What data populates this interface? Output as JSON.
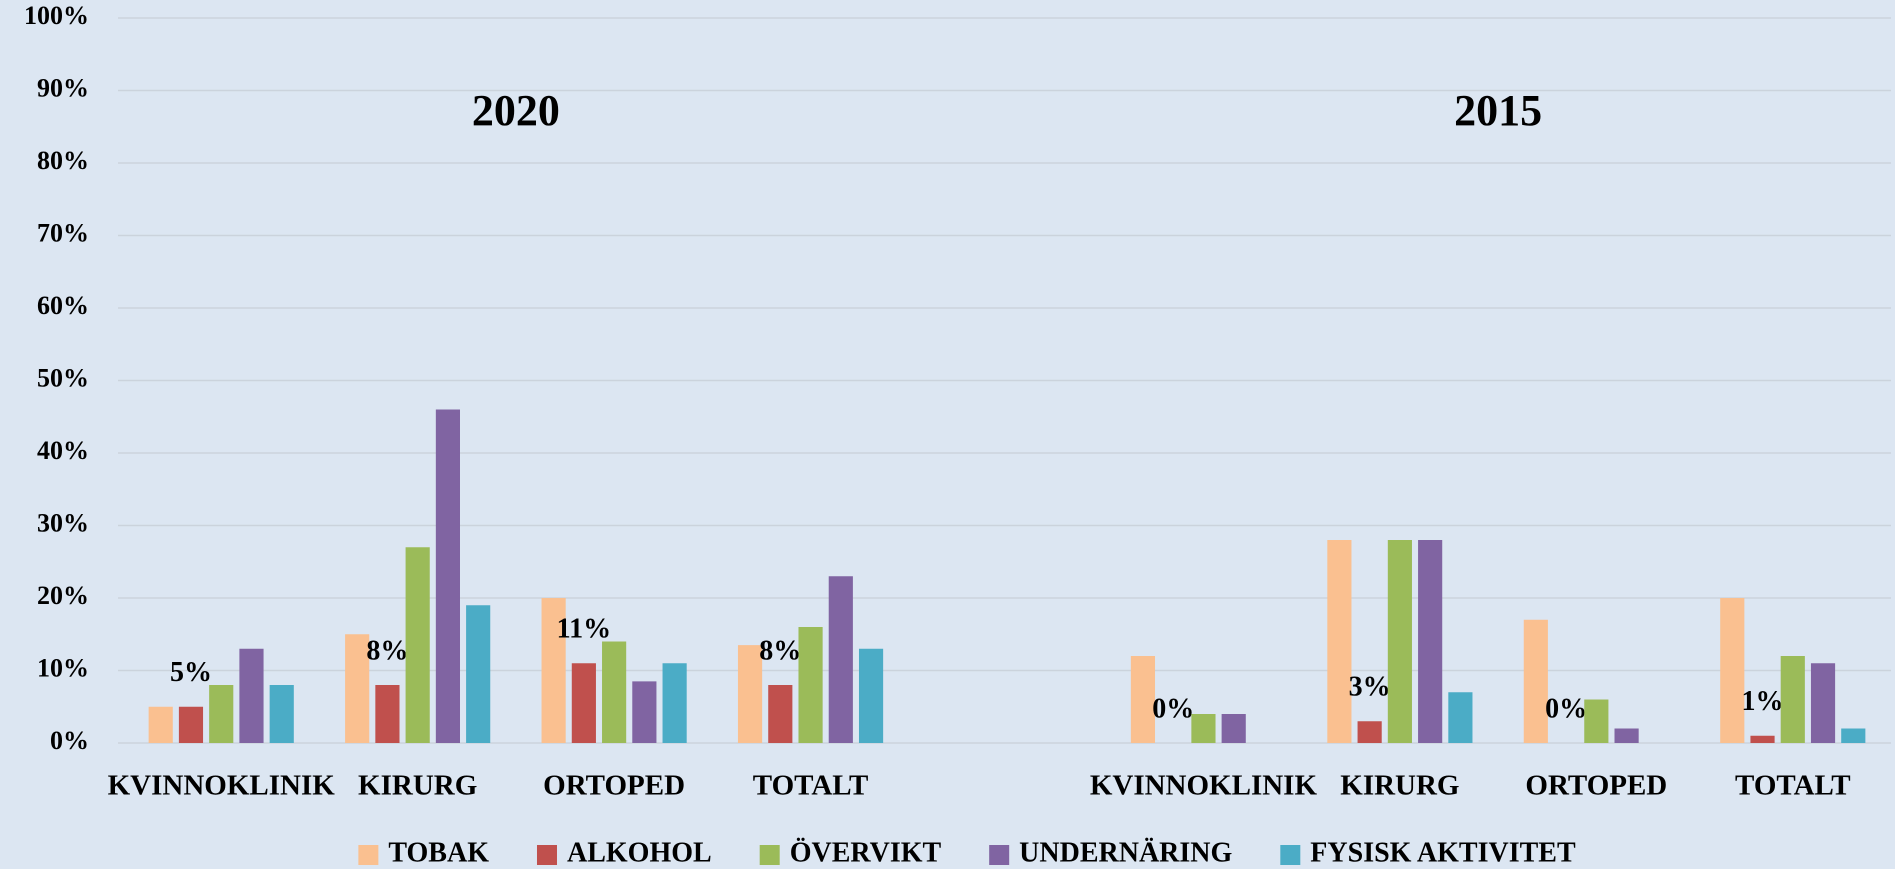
{
  "chart_data": {
    "type": "bar",
    "annotations": [
      "2020",
      "2015"
    ],
    "categories": [
      "KVINNOKLINIK",
      "KIRURG",
      "ORTOPED",
      "TOTALT",
      null,
      "KVINNOKLINIK",
      "KIRURG",
      "ORTOPED",
      "TOTALT"
    ],
    "series": [
      {
        "name": "TOBAK",
        "color": "#fac090",
        "values": [
          5,
          15,
          20,
          13.5,
          null,
          12,
          28,
          17,
          20
        ]
      },
      {
        "name": "ALKOHOL",
        "color": "#c0504d",
        "values": [
          5,
          8,
          11,
          8,
          null,
          0,
          3,
          0,
          1
        ],
        "value_labels": [
          "5%",
          "8%",
          "11%",
          "8%",
          null,
          "0%",
          "3%",
          "0%",
          "1%"
        ]
      },
      {
        "name": "ÖVERVIKT",
        "color": "#9bbb59",
        "values": [
          8,
          27,
          14,
          16,
          null,
          4,
          28,
          6,
          12
        ]
      },
      {
        "name": "UNDERNÄRING",
        "color": "#8064a2",
        "values": [
          13,
          46,
          8.5,
          23,
          null,
          4,
          28,
          2,
          11
        ]
      },
      {
        "name": "FYSISK AKTIVITET",
        "color": "#4bacc6",
        "values": [
          8,
          19,
          11,
          13,
          null,
          0,
          7,
          0,
          2
        ]
      }
    ],
    "ylim": [
      0,
      100
    ],
    "yticks": [
      {
        "value": 0,
        "label": "0%"
      },
      {
        "value": 10,
        "label": "10%"
      },
      {
        "value": 20,
        "label": "20%"
      },
      {
        "value": 30,
        "label": "30%"
      },
      {
        "value": 40,
        "label": "40%"
      },
      {
        "value": 50,
        "label": "50%"
      },
      {
        "value": 60,
        "label": "60%"
      },
      {
        "value": 70,
        "label": "70%"
      },
      {
        "value": 80,
        "label": "80%"
      },
      {
        "value": 90,
        "label": "90%"
      },
      {
        "value": 100,
        "label": "100%"
      }
    ],
    "grid": true,
    "legend": "bottom"
  }
}
